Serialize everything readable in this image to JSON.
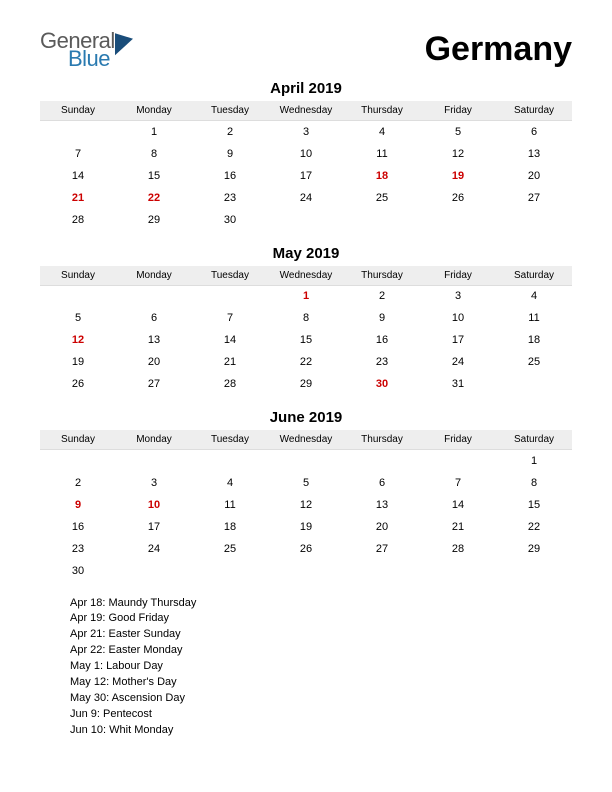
{
  "logo": {
    "line1": "General",
    "line2": "Blue"
  },
  "country": "Germany",
  "weekdays": [
    "Sunday",
    "Monday",
    "Tuesday",
    "Wednesday",
    "Thursday",
    "Friday",
    "Saturday"
  ],
  "months": [
    {
      "title": "April 2019",
      "rows": [
        [
          "",
          "1",
          "2",
          "3",
          "4",
          "5",
          "6"
        ],
        [
          "7",
          "8",
          "9",
          "10",
          "11",
          "12",
          "13"
        ],
        [
          "14",
          "15",
          "16",
          "17",
          "18",
          "19",
          "20"
        ],
        [
          "21",
          "22",
          "23",
          "24",
          "25",
          "26",
          "27"
        ],
        [
          "28",
          "29",
          "30",
          "",
          "",
          "",
          ""
        ]
      ],
      "holidays_idx": [
        [
          2,
          4
        ],
        [
          2,
          5
        ],
        [
          3,
          0
        ],
        [
          3,
          1
        ]
      ]
    },
    {
      "title": "May 2019",
      "rows": [
        [
          "",
          "",
          "",
          "1",
          "2",
          "3",
          "4"
        ],
        [
          "5",
          "6",
          "7",
          "8",
          "9",
          "10",
          "11"
        ],
        [
          "12",
          "13",
          "14",
          "15",
          "16",
          "17",
          "18"
        ],
        [
          "19",
          "20",
          "21",
          "22",
          "23",
          "24",
          "25"
        ],
        [
          "26",
          "27",
          "28",
          "29",
          "30",
          "31",
          ""
        ]
      ],
      "holidays_idx": [
        [
          0,
          3
        ],
        [
          2,
          0
        ],
        [
          4,
          4
        ]
      ]
    },
    {
      "title": "June 2019",
      "rows": [
        [
          "",
          "",
          "",
          "",
          "",
          "",
          "1"
        ],
        [
          "2",
          "3",
          "4",
          "5",
          "6",
          "7",
          "8"
        ],
        [
          "9",
          "10",
          "11",
          "12",
          "13",
          "14",
          "15"
        ],
        [
          "16",
          "17",
          "18",
          "19",
          "20",
          "21",
          "22"
        ],
        [
          "23",
          "24",
          "25",
          "26",
          "27",
          "28",
          "29"
        ],
        [
          "30",
          "",
          "",
          "",
          "",
          "",
          ""
        ]
      ],
      "holidays_idx": [
        [
          2,
          0
        ],
        [
          2,
          1
        ]
      ]
    }
  ],
  "holiday_list": [
    "Apr 18: Maundy Thursday",
    "Apr 19: Good Friday",
    "Apr 21: Easter Sunday",
    "Apr 22: Easter Monday",
    "May 1: Labour Day",
    "May 12: Mother's Day",
    "May 30: Ascension Day",
    "Jun 9: Pentecost",
    "Jun 10: Whit Monday"
  ],
  "style": {
    "page_bg": "#ffffff",
    "header_bg": "#eeeeee",
    "text_color": "#000000",
    "holiday_color": "#cc0000",
    "logo_gray": "#5a5a5a",
    "logo_blue": "#2a7ab0",
    "logo_shape": "#1a4d7a",
    "font_family": "Arial",
    "country_fontsize": 34,
    "month_title_fontsize": 15,
    "weekday_fontsize": 10,
    "day_fontsize": 11,
    "holiday_list_fontsize": 11
  }
}
